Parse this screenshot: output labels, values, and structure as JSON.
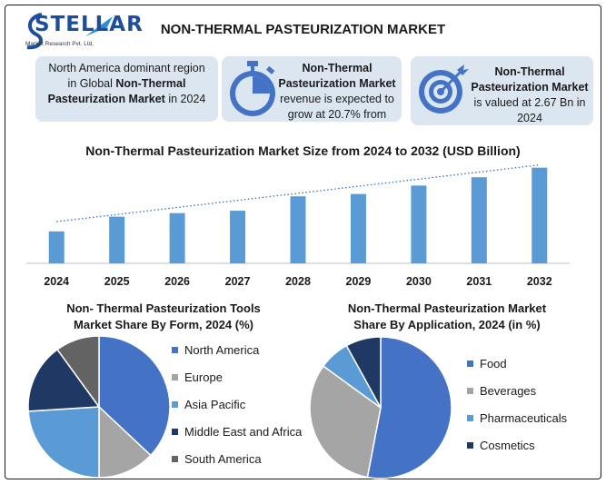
{
  "header": {
    "logo_text": "STELLAR",
    "logo_sub": "Market Research Pvt. Ltd.",
    "title": "NON-THERMAL PASTEURIZATION MARKET"
  },
  "info_boxes": [
    {
      "pre": "North America dominant region in Global ",
      "bold": "Non-Thermal Pasteurization Market",
      "post": " in 2024",
      "icon": "none"
    },
    {
      "pre": "",
      "bold": "Non-Thermal Pasteurization Market",
      "post": " revenue is expected to grow at 20.7% from",
      "icon": "stopwatch-icon"
    },
    {
      "pre": "",
      "bold": "Non-Thermal Pasteurization Market",
      "post": " is valued at 2.67 Bn in 2024",
      "icon": "target-icon"
    }
  ],
  "colors": {
    "bar": "#5b9bd5",
    "trend": "#3a6fb0",
    "pie": [
      "#4472c4",
      "#a5a5a5",
      "#5b9bd5",
      "#203864",
      "#636363"
    ]
  },
  "chart_data": [
    {
      "type": "bar",
      "title": "Non-Thermal Pasteurization Market Size from 2024 to 2032 (USD Billion)",
      "categories": [
        "2024",
        "2025",
        "2026",
        "2027",
        "2028",
        "2029",
        "2030",
        "2031",
        "2032"
      ],
      "values": [
        2.67,
        3.9,
        4.2,
        4.4,
        5.6,
        5.8,
        6.5,
        7.2,
        8.0
      ],
      "trendline": true,
      "ylim": [
        0,
        8.2
      ],
      "grid": false
    },
    {
      "type": "pie",
      "title": "Non- Thermal Pasteurization Tools Market Share By Form, 2024 (%)",
      "title_lines": [
        "Non- Thermal Pasteurization Tools",
        "Market Share By Form, 2024 (%)"
      ],
      "labels": [
        "North America",
        "Europe",
        "Asia Pacific",
        "Middle East and Africa",
        "South America"
      ],
      "values": [
        37,
        13,
        24,
        16,
        10
      ],
      "legend": "right"
    },
    {
      "type": "pie",
      "title": "Non-Thermal Pasteurization Market Share By Application, 2024 (in %)",
      "title_lines": [
        "Non-Thermal Pasteurization Market",
        "Share By Application, 2024 (in %)"
      ],
      "labels": [
        "Food",
        "Beverages",
        "Pharmaceuticals",
        "Cosmetics"
      ],
      "values": [
        53,
        32,
        7,
        8
      ],
      "legend": "right"
    }
  ]
}
